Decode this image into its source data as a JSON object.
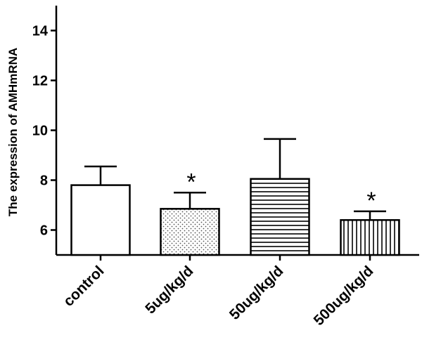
{
  "chart_data": {
    "type": "bar",
    "title": "",
    "xlabel": "",
    "ylabel": "The expression of AMHmRNA",
    "categories": [
      "control",
      "5ug/kg/d",
      "50ug/kg/d",
      "500ug/kg/d"
    ],
    "values": [
      7.8,
      6.85,
      8.05,
      6.4
    ],
    "error_upper": [
      8.55,
      7.5,
      9.65,
      6.75
    ],
    "significance": [
      "",
      "*",
      "",
      "*"
    ],
    "fill_patterns": [
      "none",
      "dots",
      "horizontal-lines",
      "vertical-lines"
    ],
    "ylim": [
      5,
      15
    ],
    "yticks": [
      6,
      8,
      10,
      12,
      14
    ],
    "grid": false,
    "legend": "none",
    "colors": {
      "bar_stroke": "#000000",
      "background": "#ffffff"
    }
  }
}
